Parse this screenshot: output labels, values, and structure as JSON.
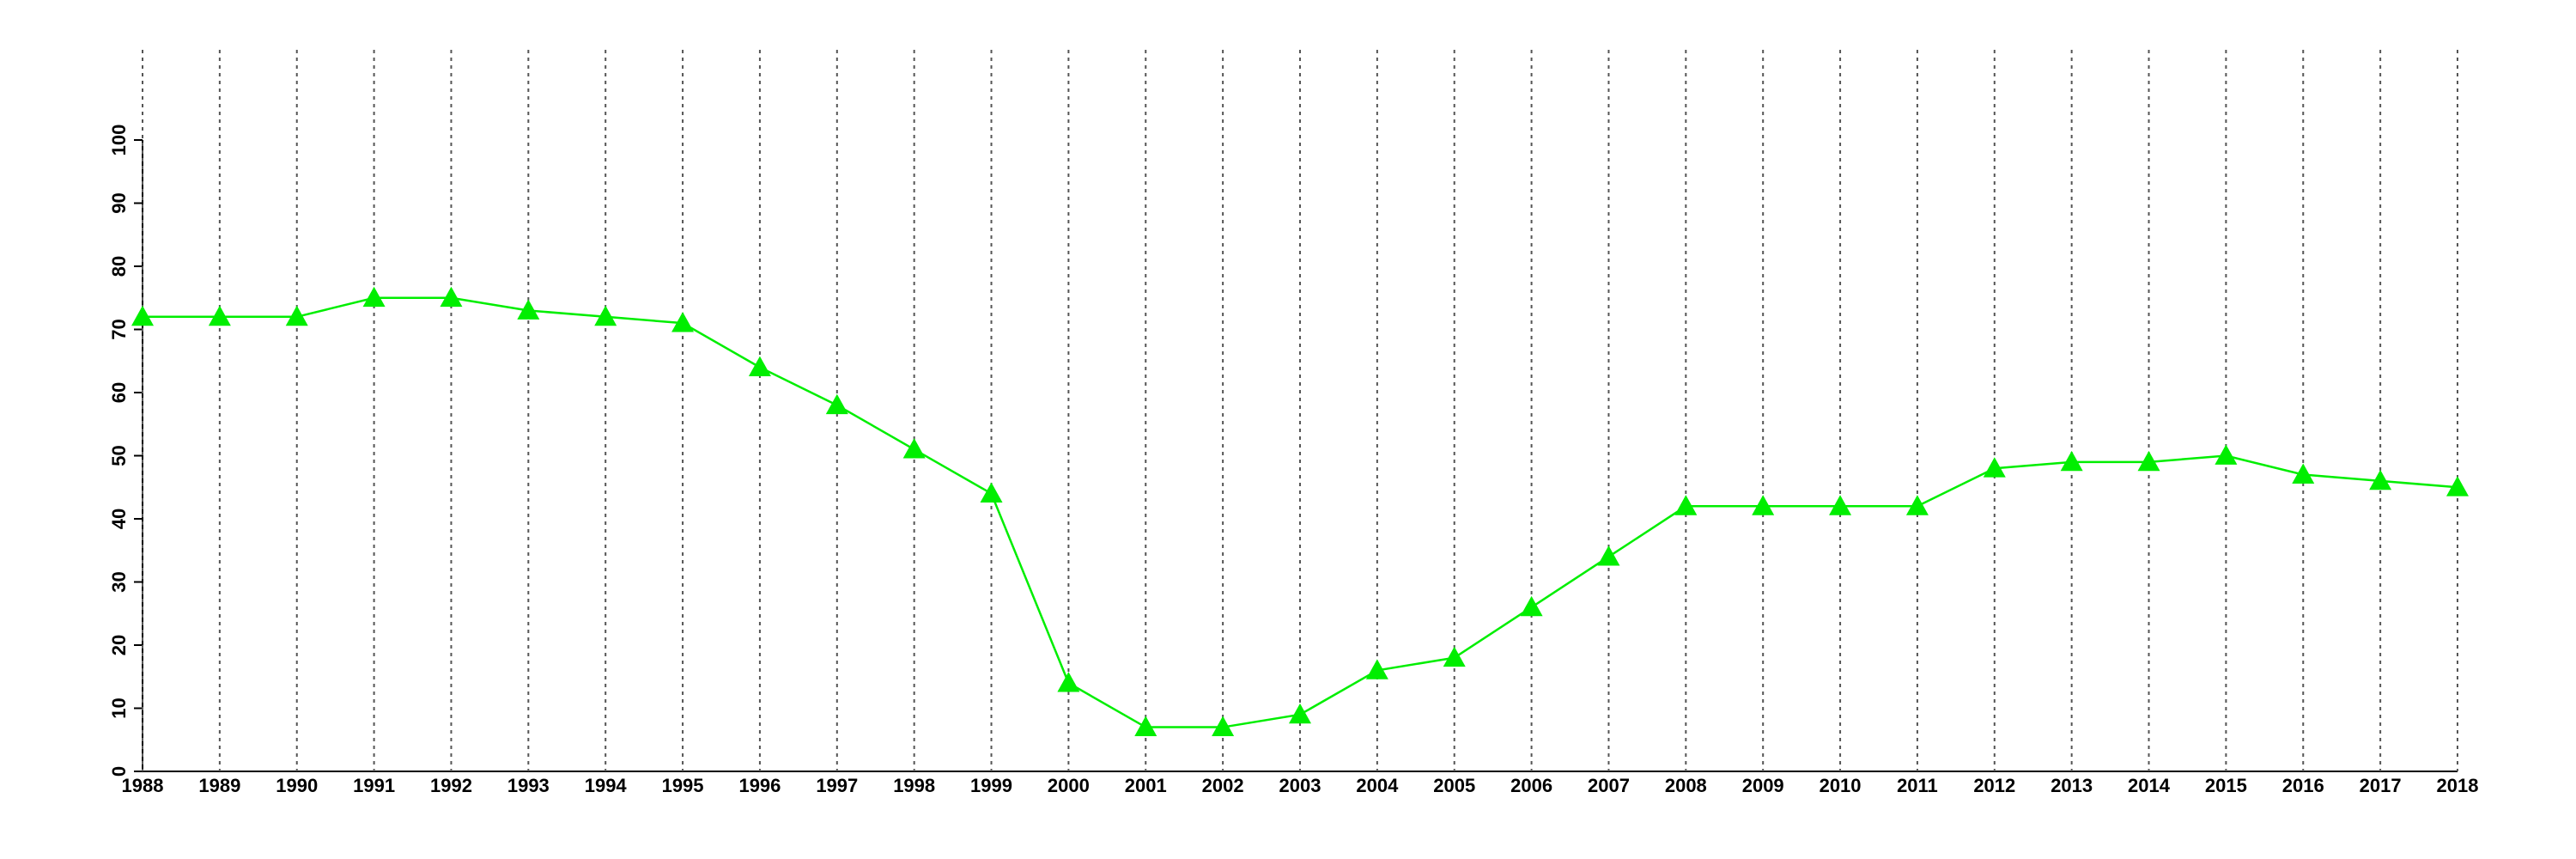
{
  "chart_data": {
    "type": "line",
    "x": [
      1988,
      1989,
      1990,
      1991,
      1992,
      1993,
      1994,
      1995,
      1996,
      1997,
      1998,
      1999,
      2000,
      2001,
      2002,
      2003,
      2004,
      2005,
      2006,
      2007,
      2008,
      2009,
      2010,
      2011,
      2012,
      2013,
      2014,
      2015,
      2016,
      2017,
      2018
    ],
    "series": [
      {
        "color": "#00ee00",
        "values": [
          72,
          72,
          72,
          75,
          75,
          73,
          72,
          71,
          64,
          58,
          51,
          44,
          14,
          7,
          7,
          9,
          16,
          18,
          26,
          34,
          42,
          42,
          42,
          42,
          48,
          49,
          49,
          50,
          47,
          46,
          45
        ]
      }
    ],
    "xlim": [
      1988,
      2018
    ],
    "xticks": [
      1988,
      1989,
      1990,
      1991,
      1992,
      1993,
      1994,
      1995,
      1996,
      1997,
      1998,
      1999,
      2000,
      2001,
      2002,
      2003,
      2004,
      2005,
      2006,
      2007,
      2008,
      2009,
      2010,
      2011,
      2012,
      2013,
      2014,
      2015,
      2016,
      2017,
      2018
    ],
    "ylim": [
      0,
      100
    ],
    "yticks": [
      0,
      10,
      20,
      30,
      40,
      50,
      60,
      70,
      80,
      90,
      100
    ],
    "grid": true
  }
}
